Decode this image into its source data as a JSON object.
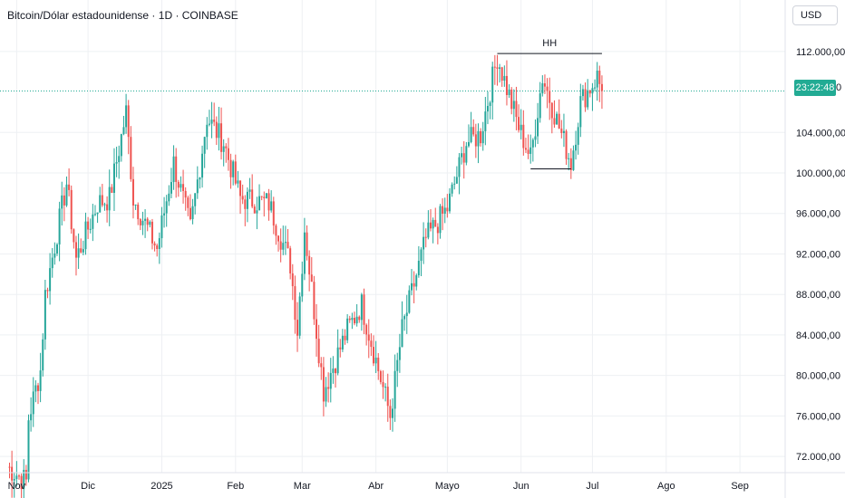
{
  "header": {
    "title": "Bitcoin/Dólar estadounidense · 1D · COINBASE"
  },
  "currency_button": {
    "label": "USD"
  },
  "price_tag": {
    "countdown": "23:22:48",
    "tail": "0"
  },
  "annotation": {
    "label": "HH"
  },
  "colors": {
    "up": "#26a69a",
    "down": "#ef5350",
    "grid": "#eef0f3",
    "price_line": "#22ab94",
    "text": "#131722"
  },
  "chart_data": {
    "type": "candlestick",
    "xlabel": "",
    "ylabel": "",
    "x_ticks": [
      "Nov",
      "Dic",
      "2025",
      "Feb",
      "Mar",
      "Abr",
      "Mayo",
      "Jun",
      "Jul",
      "Ago",
      "Sep"
    ],
    "y_ticks": [
      "72.000,00",
      "76.000,00",
      "80.000,00",
      "84.000,00",
      "88.000,00",
      "92.000,00",
      "96.000,00",
      "100.000,00",
      "104.000,00",
      "112.000,00"
    ],
    "y_tick_values": [
      72000,
      76000,
      80000,
      84000,
      88000,
      92000,
      96000,
      100000,
      104000,
      112000
    ],
    "ylim": [
      70400,
      114400
    ],
    "xlim": [
      "2024-10-25",
      "2025-09-20"
    ],
    "grid": true,
    "current_price": 108100,
    "hh_line": {
      "x_start": "2025-05-22",
      "x_end": "2025-07-05",
      "y": 111800
    },
    "support_line": {
      "x_start": "2025-06-05",
      "x_end": "2025-06-22",
      "y": 100400
    },
    "key_closes": [
      {
        "date": "2024-10-28",
        "close": 71000
      },
      {
        "date": "2024-11-05",
        "close": 69500
      },
      {
        "date": "2024-11-06",
        "close": 75800
      },
      {
        "date": "2024-11-11",
        "close": 80500
      },
      {
        "date": "2024-11-13",
        "close": 88000
      },
      {
        "date": "2024-11-22",
        "close": 99000
      },
      {
        "date": "2024-11-26",
        "close": 91500
      },
      {
        "date": "2024-12-05",
        "close": 97000
      },
      {
        "date": "2024-12-10",
        "close": 97500
      },
      {
        "date": "2024-12-17",
        "close": 106000
      },
      {
        "date": "2024-12-20",
        "close": 97500
      },
      {
        "date": "2024-12-30",
        "close": 92500
      },
      {
        "date": "2025-01-06",
        "close": 101000
      },
      {
        "date": "2025-01-13",
        "close": 94500
      },
      {
        "date": "2025-01-20",
        "close": 105500
      },
      {
        "date": "2025-01-27",
        "close": 103000
      },
      {
        "date": "2025-02-03",
        "close": 97500
      },
      {
        "date": "2025-02-15",
        "close": 97000
      },
      {
        "date": "2025-02-24",
        "close": 91000
      },
      {
        "date": "2025-02-27",
        "close": 84500
      },
      {
        "date": "2025-03-02",
        "close": 94500
      },
      {
        "date": "2025-03-10",
        "close": 78500
      },
      {
        "date": "2025-03-20",
        "close": 84500
      },
      {
        "date": "2025-03-26",
        "close": 87000
      },
      {
        "date": "2025-04-07",
        "close": 76000
      },
      {
        "date": "2025-04-12",
        "close": 84500
      },
      {
        "date": "2025-04-22",
        "close": 93500
      },
      {
        "date": "2025-05-01",
        "close": 96500
      },
      {
        "date": "2025-05-09",
        "close": 103000
      },
      {
        "date": "2025-05-15",
        "close": 103800
      },
      {
        "date": "2025-05-22",
        "close": 111500
      },
      {
        "date": "2025-05-31",
        "close": 104500
      },
      {
        "date": "2025-06-05",
        "close": 101500
      },
      {
        "date": "2025-06-10",
        "close": 109500
      },
      {
        "date": "2025-06-17",
        "close": 104500
      },
      {
        "date": "2025-06-22",
        "close": 101000
      },
      {
        "date": "2025-06-26",
        "close": 107000
      },
      {
        "date": "2025-07-03",
        "close": 109500
      },
      {
        "date": "2025-07-05",
        "close": 108100
      }
    ]
  }
}
